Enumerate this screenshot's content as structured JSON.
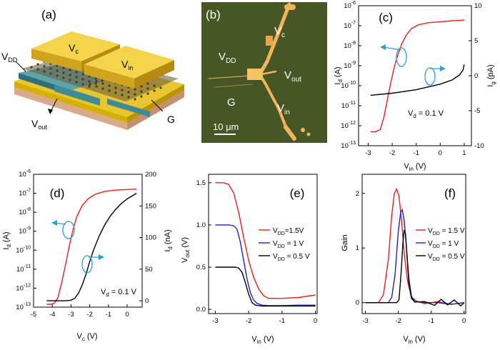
{
  "panel_a": {
    "label": "(a)",
    "vdd": "V",
    "vdd_sub": "DD",
    "vc": "V",
    "vc_sub": "c",
    "vin": "V",
    "vin_sub": "in",
    "vout": "V",
    "vout_sub": "out",
    "g": "G"
  },
  "panel_b": {
    "label": "(b)",
    "vdd": "V",
    "vdd_sub": "DD",
    "vc": "V",
    "vc_sub": "c",
    "vout": "V",
    "vout_sub": "out",
    "vin": "V",
    "vin_sub": "in",
    "g": "G",
    "scale": "10 μm"
  },
  "panel_c": {
    "label": "(c)",
    "annotation": "V",
    "annotation_sub": "d",
    "annotation_rest": " = 0.1 V",
    "ylabel": "I",
    "ylabel_sub": "d",
    "ylabel_unit": " (A)",
    "y2label": "I",
    "y2label_sub": "g",
    "y2label_unit": " (pA)",
    "xlabel": "V",
    "xlabel_sub": "in",
    "xlabel_unit": " (V)",
    "xticks": [
      "-3",
      "-2",
      "-1",
      "0",
      "1"
    ],
    "yticks_exp": [
      "-13",
      "-12",
      "-11",
      "-10",
      "-9",
      "-8",
      "-7",
      "-6"
    ],
    "y2ticks": [
      "-10",
      "-5",
      "0",
      "5",
      "10"
    ],
    "colors": {
      "id": "#ee1c1c",
      "ig": "#000000",
      "arrow": "#2c9fd6"
    }
  },
  "panel_d": {
    "label": "(d)",
    "annotation": "V",
    "annotation_sub": "d",
    "annotation_rest": " = 0.1 V",
    "ylabel": "I",
    "ylabel_sub": "d",
    "ylabel_unit": " (A)",
    "y2label": "I",
    "y2label_sub": "d",
    "y2label_unit": " (nA)",
    "xlabel": "V",
    "xlabel_sub": "c",
    "xlabel_unit": " (V)",
    "xticks": [
      "-5",
      "-4",
      "-3",
      "-2",
      "-1",
      "0"
    ],
    "yticks_exp": [
      "-13",
      "-12",
      "-11",
      "-10",
      "-9",
      "-8",
      "-7",
      "-6"
    ],
    "y2ticks": [
      "0",
      "50",
      "100",
      "150",
      "200"
    ]
  },
  "panel_e": {
    "label": "(e)",
    "ylabel": "V",
    "ylabel_sub": "out",
    "ylabel_unit": " (V)",
    "xlabel": "V",
    "xlabel_sub": "in",
    "xlabel_unit": " (V)",
    "xticks": [
      "-3",
      "-2",
      "-1",
      "0"
    ],
    "yticks": [
      "0.0",
      "0.5",
      "1.0",
      "1.5"
    ],
    "legend": [
      {
        "pre": "V",
        "sub": "DD",
        "post": "=1.5V",
        "color": "#ee1c1c"
      },
      {
        "pre": "V",
        "sub": "DD",
        "post": " = 1 V",
        "color": "#1f1fd6"
      },
      {
        "pre": "V",
        "sub": "DD",
        "post": " = 0.5 V",
        "color": "#000000"
      }
    ]
  },
  "panel_f": {
    "label": "(f)",
    "ylabel": "Gain",
    "xlabel": "V",
    "xlabel_sub": "in",
    "xlabel_unit": " (V)",
    "xticks": [
      "-3",
      "-2",
      "-1",
      "0"
    ],
    "yticks": [
      "0",
      "1",
      "2"
    ],
    "legend": [
      {
        "pre": "V",
        "sub": "DD",
        "post": " = 1.5 V",
        "color": "#ee1c1c"
      },
      {
        "pre": "V",
        "sub": "DD",
        "post": " = 1 V",
        "color": "#1f1fd6"
      },
      {
        "pre": "V",
        "sub": "DD",
        "post": " = 0.5 V",
        "color": "#000000"
      }
    ]
  },
  "chart_data": [
    {
      "type": "line",
      "panel": "c",
      "xlim": [
        -3.4,
        1.3
      ],
      "ylim_log10": [
        -13,
        -6
      ],
      "y2lim": [
        -10,
        10
      ],
      "series": [
        {
          "axis": "left",
          "x": [
            -2.9,
            -2.7,
            -2.5,
            -2.35,
            -2.2,
            -2.05,
            -1.9,
            -1.75,
            -1.6,
            -1.4,
            -1.2,
            -0.9,
            -0.5,
            0,
            0.5,
            1
          ],
          "log10_y": [
            -12.3,
            -12.3,
            -12.2,
            -11.6,
            -10.7,
            -9.8,
            -9.0,
            -8.4,
            -7.9,
            -7.45,
            -7.15,
            -6.95,
            -6.85,
            -6.8,
            -6.75,
            -6.72
          ]
        },
        {
          "axis": "right",
          "x": [
            -2.9,
            -2,
            -1,
            0,
            0.5,
            0.8,
            0.95,
            1
          ],
          "y": [
            -2.8,
            -2.5,
            -2.0,
            -1.2,
            -0.6,
            0.1,
            0.8,
            1.6
          ]
        }
      ]
    },
    {
      "type": "line",
      "panel": "d",
      "xlim": [
        -5,
        0.8
      ],
      "ylim_log10": [
        -13,
        -6
      ],
      "y2lim": [
        -10,
        200
      ],
      "series": [
        {
          "axis": "left",
          "x": [
            -4.3,
            -4.1,
            -3.9,
            -3.7,
            -3.5,
            -3.3,
            -3.1,
            -2.9,
            -2.7,
            -2.4,
            -2.1,
            -1.7,
            -1.2,
            -0.6,
            0,
            0.5
          ],
          "log10_y": [
            -12.85,
            -12.85,
            -12.8,
            -12.5,
            -11.7,
            -10.8,
            -9.8,
            -8.95,
            -8.25,
            -7.65,
            -7.3,
            -7.05,
            -6.9,
            -6.83,
            -6.8,
            -6.78
          ]
        },
        {
          "axis": "right",
          "x": [
            -4.3,
            -3.3,
            -3.0,
            -2.8,
            -2.6,
            -2.4,
            -2.2,
            -2,
            -1.8,
            -1.5,
            -1.2,
            -0.9,
            -0.6,
            -0.3,
            0,
            0.5
          ],
          "y": [
            0,
            0,
            1,
            4,
            12,
            25,
            42,
            62,
            80,
            102,
            120,
            134,
            145,
            154,
            161,
            170
          ]
        }
      ]
    },
    {
      "type": "line",
      "panel": "e",
      "xlim": [
        -3.2,
        0.05
      ],
      "ylim": [
        -0.05,
        1.6
      ],
      "series": [
        {
          "name": "VDD=1.5V",
          "x": [
            -3,
            -2.75,
            -2.6,
            -2.45,
            -2.3,
            -2.15,
            -2,
            -1.85,
            -1.7,
            -1.55,
            -1.4,
            -1.2,
            -1,
            -0.5,
            0
          ],
          "y": [
            1.5,
            1.5,
            1.48,
            1.38,
            1.15,
            0.85,
            0.58,
            0.38,
            0.24,
            0.16,
            0.13,
            0.13,
            0.13,
            0.14,
            0.17
          ]
        },
        {
          "name": "VDD = 1 V",
          "x": [
            -3,
            -2.6,
            -2.45,
            -2.35,
            -2.25,
            -2.15,
            -2.05,
            -1.95,
            -1.85,
            -1.75,
            -1.6,
            -1.4,
            -1,
            -0.5,
            0
          ],
          "y": [
            1.0,
            1.0,
            0.99,
            0.95,
            0.8,
            0.58,
            0.36,
            0.2,
            0.11,
            0.07,
            0.05,
            0.045,
            0.045,
            0.05,
            0.05
          ]
        },
        {
          "name": "VDD = 0.5 V",
          "x": [
            -3,
            -2.4,
            -2.3,
            -2.2,
            -2.1,
            -2,
            -1.9,
            -1.8,
            -1.6,
            -1.3,
            -0.8,
            0
          ],
          "y": [
            0.5,
            0.5,
            0.49,
            0.44,
            0.32,
            0.18,
            0.08,
            0.05,
            0.04,
            0.04,
            0.04,
            0.04
          ]
        }
      ]
    },
    {
      "type": "line",
      "panel": "f",
      "xlim": [
        -3.1,
        0.05
      ],
      "ylim": [
        -0.2,
        2.35
      ],
      "series": [
        {
          "name": "VDD = 1.5 V",
          "x": [
            -3,
            -2.6,
            -2.45,
            -2.3,
            -2.2,
            -2.12,
            -2.05,
            -1.98,
            -1.9,
            -1.82,
            -1.72,
            -1.6,
            -1.45,
            -1.2,
            -0.8,
            -0.4,
            0
          ],
          "y": [
            0,
            0,
            0.15,
            0.8,
            1.6,
            2.0,
            2.08,
            1.95,
            1.5,
            0.9,
            0.4,
            0.1,
            0.03,
            -0.02,
            0.02,
            -0.03,
            0
          ]
        },
        {
          "name": "VDD = 1 V",
          "x": [
            -3,
            -2.3,
            -2.2,
            -2.1,
            -2.0,
            -1.93,
            -1.88,
            -1.82,
            -1.75,
            -1.68,
            -1.6,
            -1.5,
            -1.2,
            -0.8,
            -0.4,
            0
          ],
          "y": [
            0,
            0,
            0.1,
            0.5,
            1.3,
            1.65,
            1.7,
            1.5,
            1.0,
            0.45,
            0.12,
            0.02,
            0,
            0,
            -0.03,
            0
          ]
        },
        {
          "name": "VDD = 0.5 V",
          "x": [
            -3,
            -2.05,
            -1.98,
            -1.92,
            -1.86,
            -1.82,
            -1.78,
            -1.73,
            -1.68,
            -1.6,
            -1.5,
            -1.2,
            -0.9,
            -0.7,
            -0.5,
            -0.3,
            -0.1,
            0
          ],
          "y": [
            0,
            0,
            0.05,
            0.5,
            1.1,
            1.33,
            1.25,
            0.8,
            0.35,
            0.08,
            0.01,
            0.02,
            -0.05,
            0.06,
            -0.04,
            0.05,
            -0.06,
            0
          ]
        }
      ]
    }
  ]
}
